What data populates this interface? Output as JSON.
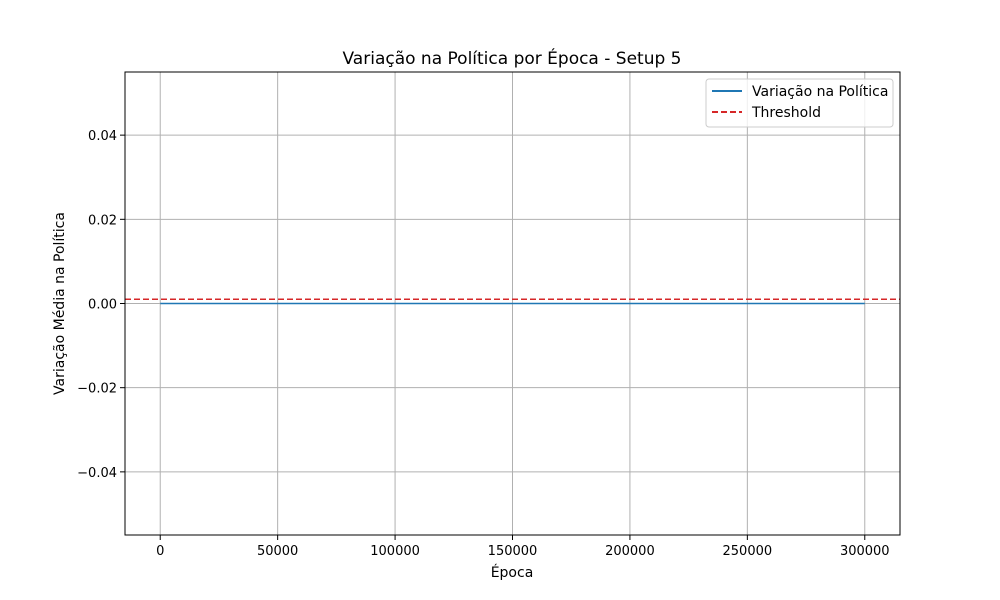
{
  "chart_data": {
    "type": "line",
    "title": "Variação na Política por Época - Setup 5",
    "xlabel": "Época",
    "ylabel": "Variação Média na Política",
    "xlim": [
      -15000,
      315000
    ],
    "ylim": [
      -0.055,
      0.055
    ],
    "x_ticks": [
      0,
      50000,
      100000,
      150000,
      200000,
      250000,
      300000
    ],
    "x_tick_labels": [
      "0",
      "50000",
      "100000",
      "150000",
      "200000",
      "250000",
      "300000"
    ],
    "y_ticks": [
      -0.04,
      -0.02,
      0.0,
      0.02,
      0.04
    ],
    "y_tick_labels": [
      "−0.04",
      "−0.02",
      "0.00",
      "0.02",
      "0.04"
    ],
    "grid": true,
    "legend_position": "top-right",
    "series": [
      {
        "name": "Variação na Política",
        "color": "#1f77b4",
        "style": "solid",
        "x": [
          0,
          50000,
          100000,
          150000,
          200000,
          250000,
          300000
        ],
        "y": [
          0,
          0,
          0,
          0,
          0,
          0,
          0
        ]
      }
    ],
    "reference_lines": [
      {
        "name": "Threshold",
        "orientation": "horizontal",
        "value": 0.001,
        "color": "#d62728",
        "style": "dashed"
      }
    ]
  }
}
